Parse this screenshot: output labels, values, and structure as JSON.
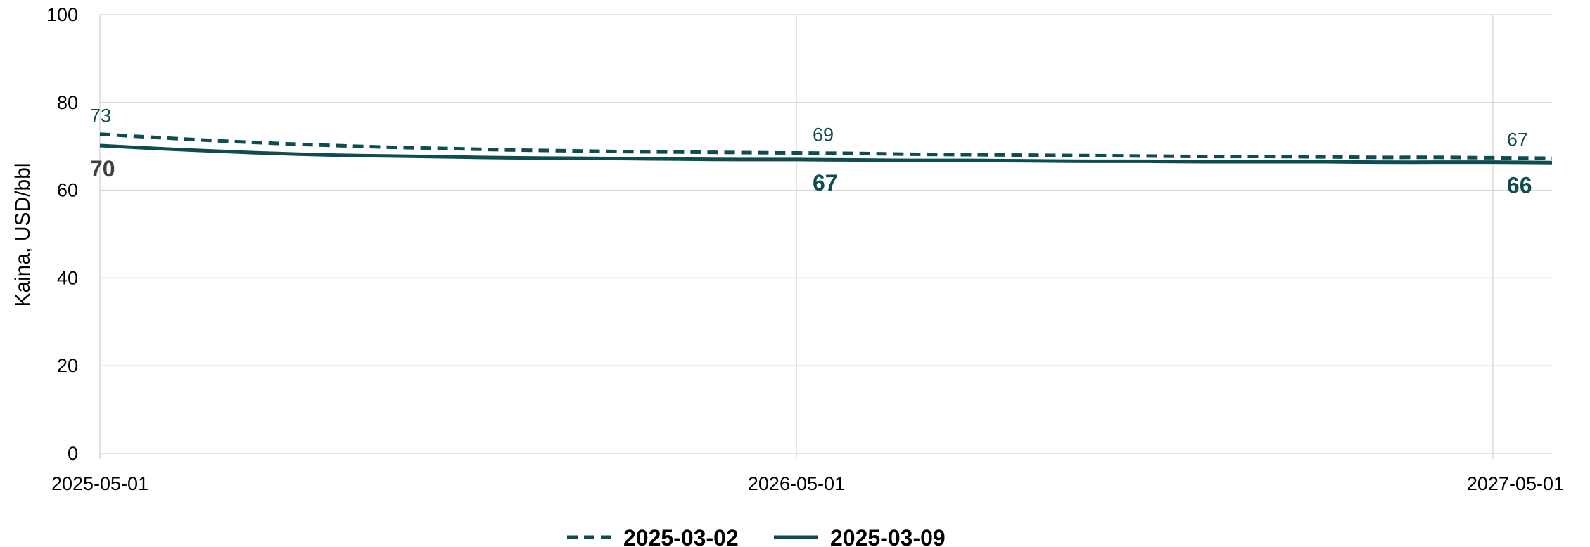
{
  "chart_data": {
    "type": "line",
    "title": "",
    "xlabel": "",
    "ylabel": "Kaina, USD/bbl",
    "ylim": [
      0,
      100
    ],
    "yticks": [
      0,
      20,
      40,
      60,
      80,
      100
    ],
    "xlim": [
      "2025-05-01",
      "2027-06-01"
    ],
    "xticks": [
      "2025-05-01",
      "2026-05-01",
      "2027-05-01"
    ],
    "grid": "both",
    "legend_position": "bottom",
    "series": [
      {
        "name": "2025-03-02",
        "style": "dashed",
        "color": "#0f4c50",
        "x": [
          "2025-05-01",
          "2025-06-01",
          "2025-07-01",
          "2025-08-01",
          "2025-09-01",
          "2025-10-01",
          "2025-11-01",
          "2025-12-01",
          "2026-01-01",
          "2026-02-01",
          "2026-03-01",
          "2026-04-01",
          "2026-05-01",
          "2026-06-01",
          "2026-07-01",
          "2026-08-01",
          "2026-09-01",
          "2026-10-01",
          "2026-11-01",
          "2026-12-01",
          "2027-01-01",
          "2027-02-01",
          "2027-03-01",
          "2027-04-01",
          "2027-05-01",
          "2027-06-01"
        ],
        "values": [
          72.8,
          72.0,
          71.3,
          70.7,
          70.2,
          69.8,
          69.5,
          69.2,
          69.0,
          68.8,
          68.7,
          68.6,
          68.5,
          68.4,
          68.2,
          68.1,
          68.0,
          67.9,
          67.8,
          67.7,
          67.7,
          67.6,
          67.5,
          67.5,
          67.4,
          67.3
        ]
      },
      {
        "name": "2025-03-09",
        "style": "solid",
        "color": "#0f4c50",
        "x": [
          "2025-05-01",
          "2025-06-01",
          "2025-07-01",
          "2025-08-01",
          "2025-09-01",
          "2025-10-01",
          "2025-11-01",
          "2025-12-01",
          "2026-01-01",
          "2026-02-01",
          "2026-03-01",
          "2026-04-01",
          "2026-05-01",
          "2026-06-01",
          "2026-07-01",
          "2026-08-01",
          "2026-09-01",
          "2026-10-01",
          "2026-11-01",
          "2026-12-01",
          "2027-01-01",
          "2027-02-01",
          "2027-03-01",
          "2027-04-01",
          "2027-05-01",
          "2027-06-01"
        ],
        "values": [
          70.2,
          69.5,
          68.9,
          68.4,
          68.0,
          67.8,
          67.6,
          67.4,
          67.3,
          67.2,
          67.1,
          67.0,
          67.0,
          66.9,
          66.8,
          66.8,
          66.7,
          66.6,
          66.6,
          66.5,
          66.5,
          66.5,
          66.4,
          66.4,
          66.4,
          66.3
        ]
      }
    ],
    "data_labels": [
      {
        "series": "2025-03-02",
        "x": "2025-05-01",
        "text": "73",
        "style": "small",
        "color": "#0f4c50",
        "placement": "above"
      },
      {
        "series": "2025-03-02",
        "x": "2026-05-01",
        "text": "69",
        "style": "small",
        "color": "#0f4c50",
        "placement": "above"
      },
      {
        "series": "2025-03-02",
        "x": "2027-05-01",
        "text": "67",
        "style": "small",
        "color": "#0f4c50",
        "placement": "above"
      },
      {
        "series": "2025-03-09",
        "x": "2025-05-01",
        "text": "70",
        "style": "bold",
        "color": "#404040",
        "placement": "below"
      },
      {
        "series": "2025-03-09",
        "x": "2026-05-01",
        "text": "67",
        "style": "bold",
        "color": "#0f4c50",
        "placement": "below"
      },
      {
        "series": "2025-03-09",
        "x": "2027-05-01",
        "text": "66",
        "style": "bold",
        "color": "#0f4c50",
        "placement": "below"
      }
    ],
    "colors": {
      "grid": "#d9d9d9",
      "axis": "#bfbfbf",
      "series": "#0f4c50"
    }
  }
}
